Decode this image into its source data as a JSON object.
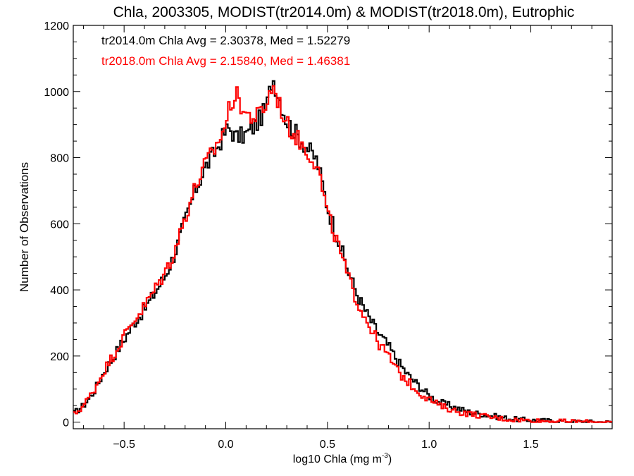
{
  "chart_data": {
    "type": "line",
    "title": "Chla, 2003305, MODIST(tr2014.0m) & MODIST(tr2018.0m), Eutrophic",
    "xlabel": "log10 Chla (mg m",
    "xlabel_sup": "-3",
    "xlabel_close": ")",
    "ylabel": "Number of Observations",
    "xlim": [
      -0.75,
      1.9
    ],
    "ylim": [
      -20,
      1200
    ],
    "xticks": [
      -0.5,
      0.0,
      0.5,
      1.0,
      1.5
    ],
    "xtick_labels": [
      "−0.5",
      "0.0",
      "0.5",
      "1.0",
      "1.5"
    ],
    "yticks": [
      0,
      200,
      400,
      600,
      800,
      1000,
      1200
    ],
    "ytick_labels": [
      "0",
      "200",
      "400",
      "600",
      "800",
      "1000",
      "1200"
    ],
    "grid": false,
    "annotations": [
      "tr2014.0m Chla Avg = 2.30378, Med = 1.52279",
      "tr2018.0m Chla Avg = 2.15840, Med = 1.46381"
    ],
    "series": [
      {
        "color": "#000000",
        "x": [
          -0.75,
          -0.7,
          -0.65,
          -0.6,
          -0.55,
          -0.5,
          -0.45,
          -0.4,
          -0.35,
          -0.3,
          -0.25,
          -0.2,
          -0.15,
          -0.1,
          -0.05,
          0.0,
          0.02,
          0.05,
          0.1,
          0.15,
          0.2,
          0.23,
          0.3,
          0.35,
          0.4,
          0.45,
          0.5,
          0.55,
          0.6,
          0.65,
          0.7,
          0.75,
          0.8,
          0.85,
          0.9,
          0.95,
          1.0,
          1.05,
          1.1,
          1.15,
          1.2,
          1.3,
          1.4,
          1.5,
          1.6,
          1.7,
          1.8,
          1.9
        ],
        "y": [
          25,
          50,
          90,
          150,
          200,
          250,
          300,
          340,
          390,
          440,
          510,
          610,
          700,
          770,
          820,
          880,
          890,
          860,
          870,
          900,
          950,
          1045,
          910,
          870,
          830,
          790,
          650,
          560,
          460,
          380,
          320,
          270,
          230,
          180,
          140,
          110,
          80,
          60,
          50,
          40,
          30,
          20,
          10,
          6,
          4,
          2,
          1,
          0
        ]
      },
      {
        "color": "#ff0000",
        "x": [
          -0.75,
          -0.7,
          -0.65,
          -0.6,
          -0.55,
          -0.5,
          -0.45,
          -0.4,
          -0.35,
          -0.3,
          -0.25,
          -0.2,
          -0.15,
          -0.1,
          -0.05,
          0.0,
          0.02,
          0.05,
          0.1,
          0.15,
          0.2,
          0.23,
          0.3,
          0.35,
          0.4,
          0.45,
          0.5,
          0.55,
          0.6,
          0.65,
          0.7,
          0.75,
          0.8,
          0.85,
          0.9,
          0.95,
          1.0,
          1.05,
          1.1,
          1.15,
          1.2,
          1.3,
          1.4,
          1.5,
          1.6,
          1.7,
          1.8,
          1.9
        ],
        "y": [
          20,
          50,
          95,
          155,
          205,
          260,
          310,
          350,
          400,
          450,
          520,
          620,
          710,
          780,
          830,
          900,
          960,
          990,
          930,
          920,
          960,
          1020,
          900,
          860,
          820,
          780,
          630,
          540,
          440,
          360,
          300,
          240,
          200,
          150,
          120,
          90,
          70,
          50,
          40,
          30,
          25,
          15,
          8,
          5,
          3,
          2,
          1,
          0
        ]
      }
    ]
  }
}
